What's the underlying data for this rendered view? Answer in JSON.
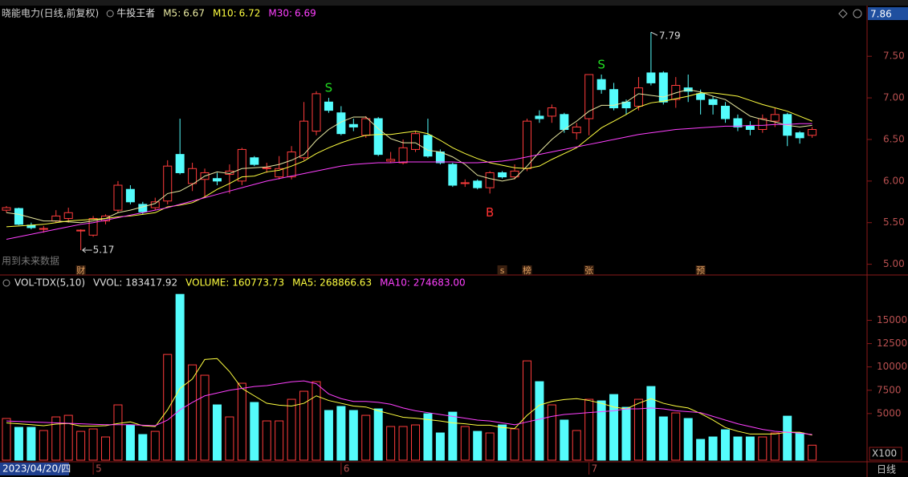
{
  "chart_data": [
    {
      "type": "candlestick",
      "title": "晓能电力(日线,前复权)",
      "indicator": "牛投王者",
      "note": "用到未来数据",
      "axis_top_label": "7.86",
      "categories": [
        "2023/04/20/四",
        null,
        null,
        null,
        null,
        null,
        null,
        "5",
        null,
        null,
        null,
        null,
        null,
        null,
        null,
        null,
        null,
        null,
        null,
        null,
        null,
        null,
        null,
        null,
        null,
        null,
        null,
        "6",
        null,
        null,
        null,
        null,
        null,
        null,
        null,
        null,
        null,
        null,
        null,
        null,
        null,
        null,
        null,
        null,
        null,
        null,
        null,
        "7",
        null,
        null,
        null,
        null,
        null,
        null,
        null,
        null,
        null,
        null,
        null,
        null,
        null,
        null,
        null,
        null,
        null,
        null
      ],
      "open": [
        5.65,
        5.67,
        5.47,
        5.42,
        5.52,
        5.55,
        5.4,
        5.35,
        5.52,
        5.65,
        5.9,
        5.72,
        5.68,
        5.76,
        6.32,
        5.97,
        6.02,
        6.03,
        6.08,
        6.0,
        6.28,
        6.15,
        6.05,
        6.05,
        6.28,
        6.6,
        6.95,
        6.82,
        6.68,
        6.55,
        6.75,
        6.24,
        6.22,
        6.38,
        6.55,
        6.35,
        6.2,
        5.97,
        6.0,
        5.92,
        6.1,
        6.05,
        6.15,
        6.78,
        6.78,
        6.8,
        6.58,
        6.75,
        7.22,
        7.1,
        6.95,
        6.9,
        7.3,
        7.3,
        6.98,
        7.12,
        7.05,
        6.98,
        6.9,
        6.75,
        6.66,
        6.62,
        6.72,
        6.8,
        6.58,
        6.55
      ],
      "high": [
        5.7,
        5.68,
        5.5,
        5.46,
        5.65,
        5.68,
        5.42,
        5.58,
        5.6,
        6.0,
        5.95,
        5.75,
        5.8,
        6.25,
        6.75,
        6.22,
        6.15,
        6.1,
        6.2,
        6.4,
        6.3,
        6.22,
        6.3,
        6.42,
        6.95,
        7.08,
        7.0,
        6.9,
        6.75,
        6.78,
        6.77,
        6.35,
        6.5,
        6.6,
        6.75,
        6.38,
        6.22,
        6.02,
        6.02,
        6.12,
        6.12,
        6.2,
        6.75,
        6.85,
        6.92,
        6.82,
        6.7,
        7.28,
        7.28,
        7.18,
        6.98,
        7.25,
        7.79,
        7.32,
        7.25,
        7.28,
        7.1,
        7.02,
        6.95,
        6.8,
        6.72,
        6.8,
        6.88,
        6.82,
        6.6,
        6.65
      ],
      "low": [
        5.62,
        5.47,
        5.42,
        5.38,
        5.5,
        5.5,
        5.17,
        5.33,
        5.48,
        5.62,
        5.72,
        5.6,
        5.65,
        5.72,
        6.08,
        5.88,
        5.8,
        5.95,
        5.85,
        5.95,
        6.18,
        6.1,
        6.02,
        6.02,
        6.25,
        6.55,
        6.82,
        6.55,
        6.6,
        6.52,
        6.3,
        6.22,
        6.2,
        6.35,
        6.28,
        6.2,
        5.93,
        5.93,
        5.9,
        5.85,
        6.03,
        6.02,
        6.12,
        6.7,
        6.7,
        6.58,
        6.5,
        6.55,
        7.05,
        6.85,
        6.8,
        6.85,
        7.15,
        6.92,
        6.88,
        6.95,
        6.8,
        6.8,
        6.7,
        6.6,
        6.55,
        6.58,
        6.65,
        6.42,
        6.45,
        6.52
      ],
      "close": [
        5.68,
        5.48,
        5.44,
        5.43,
        5.58,
        5.62,
        5.41,
        5.55,
        5.58,
        5.95,
        5.75,
        5.63,
        5.75,
        6.18,
        6.1,
        6.15,
        6.1,
        6.0,
        6.12,
        6.38,
        6.2,
        6.16,
        6.15,
        6.35,
        6.72,
        7.05,
        6.85,
        6.57,
        6.65,
        6.75,
        6.32,
        6.26,
        6.4,
        6.57,
        6.3,
        6.22,
        5.95,
        5.98,
        5.92,
        6.1,
        6.05,
        6.12,
        6.72,
        6.75,
        6.88,
        6.62,
        6.65,
        7.28,
        7.1,
        6.88,
        6.88,
        7.12,
        7.18,
        6.95,
        7.15,
        7.08,
        6.98,
        6.92,
        6.75,
        6.65,
        6.62,
        6.75,
        6.8,
        6.55,
        6.52,
        6.62
      ],
      "up_color": "#ff3c3c",
      "down_color": "#54fcfc",
      "signals": [
        null,
        null,
        null,
        null,
        null,
        null,
        null,
        null,
        null,
        null,
        null,
        null,
        null,
        null,
        null,
        null,
        null,
        null,
        null,
        null,
        null,
        null,
        null,
        null,
        null,
        null,
        "S",
        null,
        null,
        null,
        null,
        null,
        null,
        null,
        null,
        null,
        null,
        null,
        null,
        "B",
        null,
        null,
        null,
        null,
        null,
        null,
        null,
        null,
        "S",
        null,
        null,
        null,
        null,
        null,
        null,
        null,
        null,
        null,
        null,
        null,
        null,
        null,
        null,
        null,
        null,
        null
      ],
      "signal_colors": {
        "S": "#22dd22",
        "B": "#ff3232"
      },
      "markers": [
        null,
        null,
        null,
        null,
        null,
        null,
        "财",
        null,
        null,
        null,
        null,
        null,
        null,
        null,
        null,
        null,
        null,
        null,
        null,
        null,
        null,
        null,
        null,
        null,
        null,
        null,
        null,
        null,
        null,
        null,
        null,
        null,
        null,
        null,
        null,
        null,
        null,
        null,
        null,
        null,
        "s",
        null,
        "榜",
        null,
        null,
        null,
        null,
        "张",
        null,
        null,
        null,
        null,
        null,
        null,
        null,
        null,
        "预",
        null,
        null,
        null,
        null,
        null,
        null,
        null,
        null,
        null
      ],
      "series": [
        {
          "name": "M5:",
          "color": "#e8e8a0",
          "values": [
            5.62,
            5.6,
            5.56,
            5.52,
            5.52,
            5.51,
            5.5,
            5.52,
            5.55,
            5.62,
            5.65,
            5.69,
            5.73,
            5.85,
            5.88,
            5.96,
            6.06,
            6.11,
            6.09,
            6.15,
            6.16,
            6.17,
            6.2,
            6.25,
            6.32,
            6.49,
            6.62,
            6.71,
            6.77,
            6.77,
            6.63,
            6.51,
            6.46,
            6.46,
            6.37,
            6.35,
            6.29,
            6.2,
            6.07,
            6.03,
            6.0,
            6.03,
            6.18,
            6.35,
            6.5,
            6.62,
            6.72,
            6.84,
            6.91,
            6.91,
            6.95,
            7.05,
            7.03,
            7.01,
            7.06,
            7.1,
            7.07,
            7.02,
            6.98,
            6.88,
            6.78,
            6.74,
            6.71,
            6.67,
            6.65,
            6.67
          ]
        },
        {
          "name": "M10:",
          "color": "#ffff40",
          "values": [
            5.45,
            5.46,
            5.47,
            5.48,
            5.5,
            5.52,
            5.53,
            5.54,
            5.55,
            5.57,
            5.58,
            5.6,
            5.62,
            5.69,
            5.71,
            5.74,
            5.81,
            5.9,
            5.97,
            6.05,
            6.06,
            6.11,
            6.13,
            6.18,
            6.24,
            6.33,
            6.4,
            6.46,
            6.51,
            6.55,
            6.56,
            6.56,
            6.58,
            6.6,
            6.57,
            6.49,
            6.4,
            6.33,
            6.27,
            6.22,
            6.19,
            6.16,
            6.15,
            6.18,
            6.26,
            6.33,
            6.4,
            6.52,
            6.64,
            6.72,
            6.8,
            6.89,
            6.94,
            6.96,
            6.99,
            7.02,
            7.06,
            7.06,
            7.04,
            7.02,
            6.97,
            6.92,
            6.88,
            6.84,
            6.78,
            6.72
          ]
        },
        {
          "name": "M30:",
          "color": "#ff40ff",
          "values": [
            5.3,
            5.33,
            5.36,
            5.39,
            5.42,
            5.45,
            5.48,
            5.5,
            5.53,
            5.56,
            5.59,
            5.62,
            5.65,
            5.68,
            5.72,
            5.76,
            5.8,
            5.84,
            5.88,
            5.92,
            5.96,
            6.0,
            6.03,
            6.06,
            6.09,
            6.12,
            6.15,
            6.18,
            6.2,
            6.21,
            6.22,
            6.22,
            6.23,
            6.23,
            6.23,
            6.23,
            6.23,
            6.22,
            6.22,
            6.23,
            6.24,
            6.26,
            6.29,
            6.32,
            6.35,
            6.38,
            6.41,
            6.44,
            6.47,
            6.5,
            6.53,
            6.56,
            6.58,
            6.6,
            6.62,
            6.63,
            6.64,
            6.65,
            6.66,
            6.66,
            6.67,
            6.67,
            6.68,
            6.68,
            6.69,
            6.69
          ]
        }
      ],
      "ylim": [
        4.9,
        8.08
      ],
      "yticks": [
        {
          "value": 5,
          "label": "5.00"
        },
        {
          "value": 5.5,
          "label": "5.50"
        },
        {
          "value": 6,
          "label": "6.00"
        },
        {
          "value": 6.5,
          "label": "6.50"
        },
        {
          "value": 7,
          "label": "7.00"
        },
        {
          "value": 7.5,
          "label": "7.50"
        }
      ]
    },
    {
      "type": "bar",
      "title": "VOL-TDX(5,10)",
      "legend_texts": [
        "VVOL: 183417.92"
      ],
      "unit_label": "X100",
      "period": "日线",
      "series": [
        {
          "name": "VOLUME: 160773.73",
          "color": "#ffffff",
          "values": [
            4470,
            3520,
            3520,
            3180,
            4640,
            4810,
            3090,
            3350,
            2490,
            5930,
            3780,
            2750,
            3090,
            11340,
            17780,
            10220,
            9110,
            5930,
            4640,
            8250,
            6190,
            4210,
            4210,
            6530,
            7390,
            8420,
            5330,
            5760,
            5330,
            4810,
            5500,
            3610,
            3610,
            3780,
            4980,
            2920,
            5150,
            3610,
            3090,
            2920,
            3780,
            3350,
            10650,
            8420,
            5930,
            4300,
            3180,
            6530,
            6360,
            7040,
            5670,
            6530,
            7900,
            4640,
            5070,
            4470,
            2230,
            2490,
            3260,
            2490,
            2490,
            2490,
            2920,
            4720,
            2920,
            1608
          ]
        },
        {
          "name": "MA5: 268866.63",
          "color": "#ffff40",
          "values": [
            4000,
            3900,
            3800,
            3700,
            3870,
            3930,
            3650,
            3650,
            3700,
            3930,
            4100,
            3700,
            3600,
            5400,
            7700,
            8700,
            10800,
            10900,
            9500,
            7700,
            6900,
            6100,
            5900,
            5800,
            6100,
            6900,
            6400,
            6100,
            5800,
            5700,
            5300,
            4950,
            4600,
            4500,
            4350,
            4200,
            4000,
            3900,
            3750,
            3750,
            3500,
            3400,
            4800,
            5900,
            6300,
            6500,
            6600,
            6400,
            6100,
            5700,
            5500,
            6100,
            6600,
            6100,
            5800,
            5600,
            5000,
            4300,
            3500,
            3100,
            2800,
            2800,
            2800,
            3000,
            3000,
            2689
          ]
        },
        {
          "name": "MA10: 274683.00",
          "color": "#ff40ff",
          "values": [
            4200,
            4150,
            4100,
            4050,
            4000,
            3950,
            3900,
            3850,
            3800,
            3800,
            3800,
            3750,
            3700,
            4300,
            5400,
            6200,
            6900,
            7200,
            7500,
            7700,
            7900,
            8000,
            8200,
            8400,
            8500,
            8200,
            7100,
            6600,
            6300,
            6300,
            6200,
            6000,
            5600,
            5300,
            5100,
            4900,
            4700,
            4500,
            4300,
            4200,
            4000,
            3800,
            4100,
            4400,
            4700,
            4900,
            5000,
            5100,
            5200,
            5300,
            5500,
            5500,
            5600,
            5500,
            5300,
            5200,
            5100,
            4700,
            4300,
            3900,
            3600,
            3300,
            3100,
            3000,
            2900,
            2747
          ]
        }
      ],
      "ylim": [
        0,
        18400
      ],
      "yticks": [
        5000,
        7500,
        10000,
        12500,
        15000
      ]
    }
  ]
}
